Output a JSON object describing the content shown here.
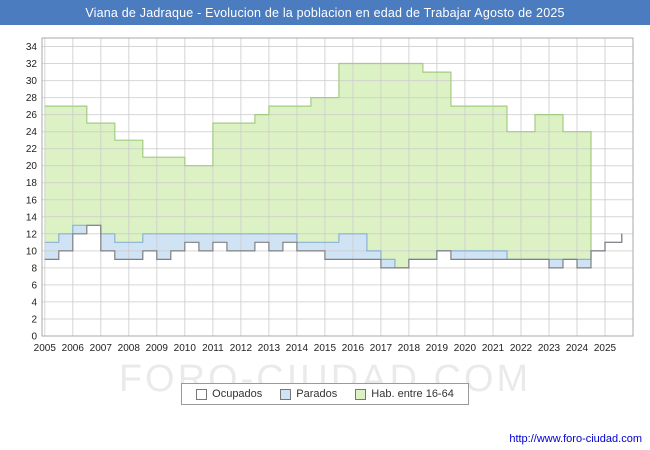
{
  "watermark": "FORO-CIUDAD.COM",
  "footer": {
    "url": "http://www.foro-ciudad.com"
  },
  "title_bar": {
    "bg": "#4a7cbf"
  },
  "chart_data": {
    "type": "area",
    "title": "Viana de Jadraque - Evolucion de la poblacion en edad de Trabajar Agosto de 2025",
    "xlabel": "",
    "ylabel": "",
    "xlim": [
      2004.9,
      2026.0
    ],
    "ylim": [
      0,
      35
    ],
    "grid": true,
    "legend_position": "bottom",
    "x_ticks": [
      2005,
      2006,
      2007,
      2008,
      2009,
      2010,
      2011,
      2012,
      2013,
      2014,
      2015,
      2016,
      2017,
      2018,
      2019,
      2020,
      2021,
      2022,
      2023,
      2024,
      2025
    ],
    "y_ticks": [
      0,
      2,
      4,
      6,
      8,
      10,
      12,
      14,
      16,
      18,
      20,
      22,
      24,
      26,
      28,
      30,
      32,
      34
    ],
    "x": [
      2005,
      2005.5,
      2006,
      2006.5,
      2007,
      2007.5,
      2008,
      2008.5,
      2009,
      2009.5,
      2010,
      2010.5,
      2011,
      2011.5,
      2012,
      2012.5,
      2013,
      2013.5,
      2014,
      2014.5,
      2015,
      2015.5,
      2016,
      2016.5,
      2017,
      2017.5,
      2018,
      2018.5,
      2019,
      2019.5,
      2020,
      2020.5,
      2021,
      2021.5,
      2022,
      2022.5,
      2023,
      2023.5,
      2024,
      2024.5,
      2025,
      2025.6
    ],
    "series": [
      {
        "name": "Ocupados",
        "color": "#ffffff",
        "line": "#808080",
        "values": [
          9,
          10,
          12,
          13,
          10,
          9,
          9,
          10,
          9,
          10,
          11,
          10,
          11,
          10,
          10,
          11,
          10,
          11,
          10,
          10,
          9,
          9,
          9,
          9,
          8,
          8,
          9,
          9,
          10,
          9,
          9,
          9,
          9,
          9,
          9,
          9,
          8,
          9,
          8,
          10,
          11,
          12
        ]
      },
      {
        "name": "Parados",
        "color": "#cfe3f5",
        "line": "#8cb2d4",
        "stacked_on": "Ocupados",
        "values": [
          2,
          2,
          1,
          0,
          2,
          2,
          2,
          2,
          3,
          2,
          1,
          2,
          1,
          2,
          2,
          1,
          2,
          1,
          1,
          1,
          2,
          3,
          3,
          1,
          1,
          0,
          0,
          0,
          0,
          1,
          1,
          1,
          1,
          0,
          0,
          0,
          1,
          0,
          1,
          0,
          0,
          0
        ]
      },
      {
        "name": "Hab. entre 16-64",
        "color": "#dcf2c5",
        "line": "#a3cc82",
        "values": [
          27,
          27,
          27,
          25,
          25,
          23,
          23,
          21,
          21,
          21,
          20,
          20,
          25,
          25,
          25,
          26,
          27,
          27,
          27,
          28,
          28,
          32,
          32,
          32,
          32,
          32,
          32,
          31,
          31,
          27,
          27,
          27,
          27,
          24,
          24,
          26,
          26,
          24,
          24,
          24,
          null,
          null
        ]
      }
    ]
  }
}
